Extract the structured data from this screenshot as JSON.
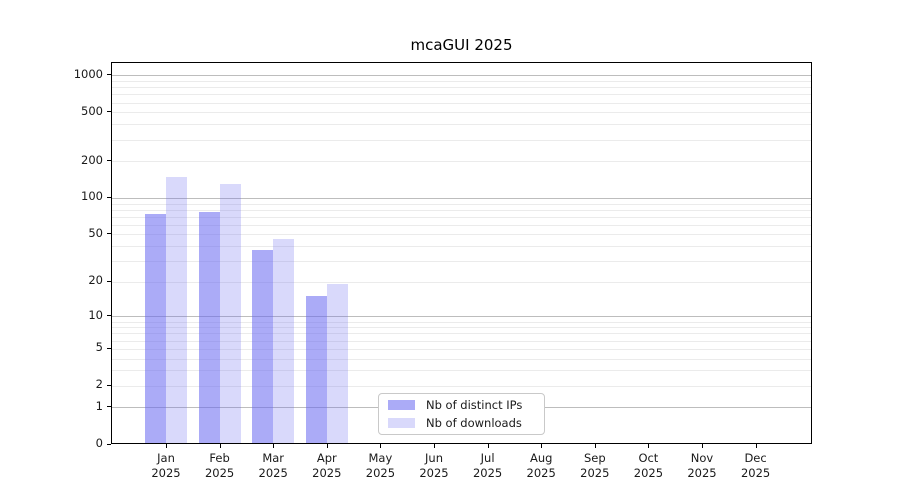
{
  "chart_data": {
    "type": "bar",
    "title": "mcaGUI 2025",
    "yscale": "log1p",
    "ylim": [
      0,
      1260
    ],
    "y_ticks": [
      0,
      1,
      2,
      5,
      10,
      20,
      50,
      100,
      200,
      500,
      1000
    ],
    "grid": {
      "major_values": [
        1,
        10,
        100,
        1000
      ],
      "major_color": "#bdbdbd",
      "minor_color": "#ebebeb"
    },
    "categories": [
      "Jan",
      "Feb",
      "Mar",
      "Apr",
      "May",
      "Jun",
      "Jul",
      "Aug",
      "Sep",
      "Oct",
      "Nov",
      "Dec"
    ],
    "year_label": "2025",
    "series": [
      {
        "name": "Nb of distinct IPs",
        "color": "rgba(102,102,240,0.55)",
        "values": [
          74,
          77,
          37,
          15,
          0,
          0,
          0,
          0,
          0,
          0,
          0,
          0
        ]
      },
      {
        "name": "Nb of downloads",
        "color": "rgba(102,102,240,0.25)",
        "values": [
          148,
          130,
          46,
          19,
          0,
          0,
          0,
          0,
          0,
          0,
          0,
          0
        ]
      }
    ],
    "legend_position": "inside-bottom-center"
  }
}
